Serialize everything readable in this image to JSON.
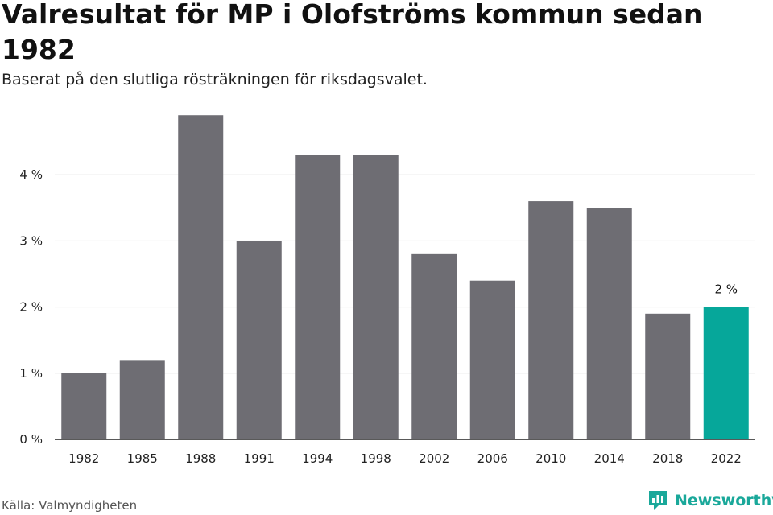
{
  "title": "Valresultat för MP i Olofströms kommun sedan 1982",
  "subtitle": "Baserat på den slutliga rösträkningen för riksdagsvalet.",
  "source": "Källa: Valmyndigheten",
  "brand": {
    "name": "Newsworthy",
    "color": "#1aa89a",
    "icon": "newsworthy-logo-icon"
  },
  "colors": {
    "bar": "#6e6d73",
    "highlight": "#06a79a",
    "grid": "#dddddd",
    "axis": "#222222"
  },
  "chart_data": {
    "type": "bar",
    "categories": [
      "1982",
      "1985",
      "1988",
      "1991",
      "1994",
      "1998",
      "2002",
      "2006",
      "2010",
      "2014",
      "2018",
      "2022"
    ],
    "values": [
      1.0,
      1.2,
      4.9,
      3.0,
      4.3,
      4.3,
      2.8,
      2.4,
      3.6,
      3.5,
      1.9,
      2.0
    ],
    "highlight_index": 11,
    "highlight_label": "2 %",
    "y_ticks": [
      0,
      1,
      2,
      3,
      4
    ],
    "y_tick_labels": [
      "0 %",
      "1 %",
      "2 %",
      "3 %",
      "4 %"
    ],
    "ylim": [
      0,
      5
    ],
    "grid": true,
    "legend": "none"
  }
}
